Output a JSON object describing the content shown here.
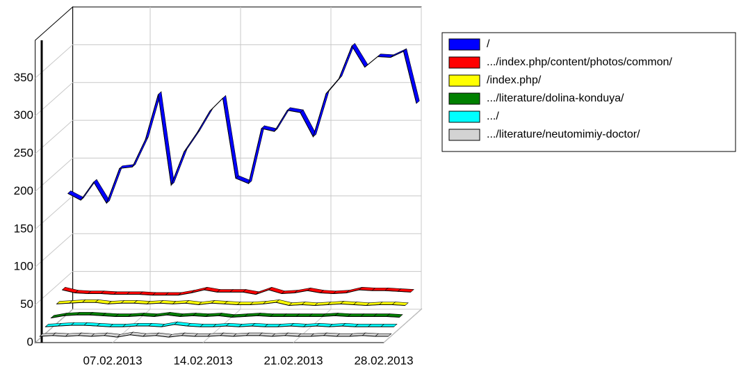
{
  "chart_data": {
    "type": "line3d",
    "categories": [
      null,
      null,
      null,
      null,
      null,
      null,
      "07.02.2013",
      null,
      null,
      null,
      null,
      null,
      null,
      "14.02.2013",
      null,
      null,
      null,
      null,
      null,
      null,
      "21.02.2013",
      null,
      null,
      null,
      null,
      null,
      null,
      "28.02.2013"
    ],
    "ylim": [
      0,
      400
    ],
    "yticks": [
      0,
      50,
      100,
      150,
      200,
      250,
      300,
      350
    ],
    "grid": true,
    "legend": "right",
    "series": [
      {
        "name": "/",
        "color": "#0000ff",
        "values": [
          159,
          150,
          174,
          146,
          192,
          194,
          230,
          290,
          170,
          214,
          239,
          268,
          285,
          179,
          172,
          245,
          241,
          269,
          266,
          234,
          291,
          311,
          354,
          326,
          340,
          339,
          347,
          278
        ]
      },
      {
        "name": ".../index.php/content/photos/common/",
        "color": "#ff0000",
        "values": [
          38,
          34,
          33,
          33,
          32,
          32,
          32,
          31,
          31,
          31,
          34,
          38,
          35,
          35,
          35,
          32,
          38,
          33,
          34,
          37,
          34,
          33,
          34,
          38,
          37,
          37,
          36,
          35
        ]
      },
      {
        "name": "/index.php/",
        "color": "#ffff00",
        "values": [
          26,
          27,
          28,
          28,
          26,
          27,
          27,
          26,
          27,
          26,
          27,
          25,
          27,
          26,
          25,
          25,
          26,
          28,
          24,
          25,
          24,
          25,
          26,
          25,
          24,
          25,
          25,
          24
        ]
      },
      {
        "name": ".../literature/dolina-konduya/",
        "color": "#008000",
        "values": [
          14,
          17,
          18,
          18,
          17,
          16,
          16,
          17,
          16,
          18,
          16,
          17,
          16,
          17,
          15,
          16,
          17,
          16,
          16,
          16,
          16,
          16,
          17,
          16,
          16,
          16,
          16,
          15
        ]
      },
      {
        "name": ".../",
        "color": "#00ffff",
        "values": [
          9,
          10,
          11,
          11,
          10,
          9,
          9,
          10,
          10,
          9,
          12,
          10,
          9,
          9,
          10,
          9,
          10,
          9,
          9,
          10,
          9,
          10,
          9,
          10,
          9,
          9,
          9,
          9
        ]
      },
      {
        "name": ".../literature/neutomimiy-doctor/",
        "color": "#d3d3d3",
        "values": [
          3,
          4,
          3,
          4,
          3,
          4,
          2,
          5,
          3,
          4,
          2,
          4,
          3,
          3,
          4,
          3,
          4,
          4,
          3,
          4,
          3,
          3,
          4,
          3,
          3,
          4,
          3,
          3
        ]
      }
    ]
  }
}
